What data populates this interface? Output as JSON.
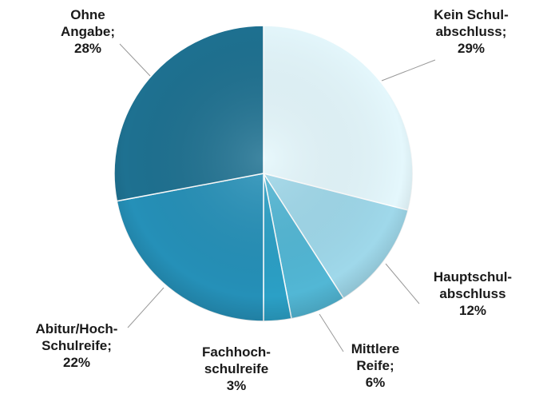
{
  "chart_data": {
    "type": "pie",
    "categories": [
      [
        "Kein Schul-",
        "abschluss;"
      ],
      [
        "Hauptschul-",
        "abschluss"
      ],
      [
        "Mittlere",
        "Reife;"
      ],
      [
        "Fachhoch-",
        "schulreife"
      ],
      [
        "Abitur/Hoch-",
        "Schulreife;"
      ],
      [
        "Ohne",
        "Angabe;"
      ]
    ],
    "values": [
      29,
      12,
      6,
      3,
      22,
      28
    ],
    "value_labels": [
      "29%",
      "12%",
      "6%",
      "3%",
      "22%",
      "28%"
    ],
    "colors": [
      "#e4f7fc",
      "#9fd8ea",
      "#52b7d5",
      "#2ba0c6",
      "#2590b8",
      "#1e7191"
    ]
  }
}
